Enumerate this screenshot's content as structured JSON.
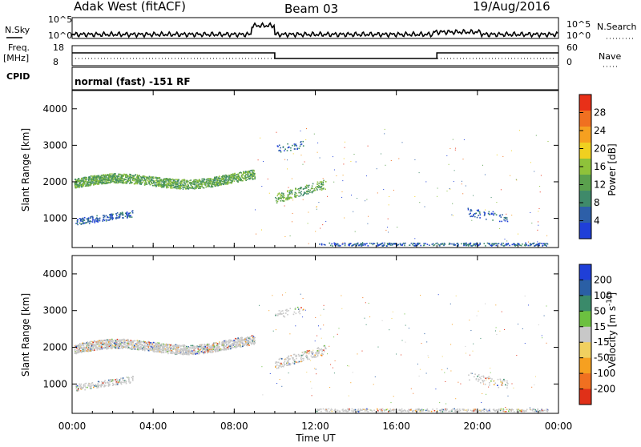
{
  "header": {
    "station": "Adak West (fitACF)",
    "beam": "Beam 03",
    "date": "19/Aug/2016"
  },
  "noise_panel": {
    "left_label": "N.Sky",
    "right_label": "N.Search",
    "y_tick_top": "10^5",
    "y_tick_bottom": "10^0",
    "right_tick_top": "10^5",
    "right_tick_bottom": "10^0"
  },
  "freq_panel": {
    "left_label_line1": "Freq.",
    "left_label_line2": "[MHz]",
    "right_label": "Nave",
    "y_tick_top": "18",
    "y_tick_bottom": "8",
    "right_tick_top": "60",
    "right_tick_bottom": "0"
  },
  "cpid_panel": {
    "label": "CPID",
    "text": "normal (fast) -151 RF"
  },
  "colors": {
    "power_scale": [
      "#1f3fd8",
      "#2d5fa8",
      "#3f8a6a",
      "#5aa04d",
      "#8fc23a",
      "#f0d020",
      "#f6a020",
      "#f07020",
      "#e83018"
    ],
    "velocity_scale": [
      "#1f3fd8",
      "#2a5fa5",
      "#3a8a6a",
      "#6cc040",
      "#c8c8c8",
      "#f0d060",
      "#f6a020",
      "#f07020",
      "#e03018"
    ]
  },
  "chart_data": [
    {
      "type": "heatmap",
      "title": "Power",
      "xlabel": "Time UT",
      "ylabel": "Slant Range [km]",
      "x_ticks": [
        "00:00",
        "04:00",
        "08:00",
        "12:00",
        "16:00",
        "20:00",
        "00:00"
      ],
      "y_ticks": [
        "1000",
        "2000",
        "3000",
        "4000"
      ],
      "ylim": [
        200,
        4500
      ],
      "colorbar_label": "Power [dB]",
      "colorbar_ticks": [
        "4",
        "8",
        "12",
        "16",
        "20",
        "24",
        "28"
      ],
      "colorbar_range": [
        0,
        30
      ]
    },
    {
      "type": "heatmap",
      "title": "Velocity",
      "xlabel": "Time UT",
      "ylabel": "Slant Range [km]",
      "x_ticks": [
        "00:00",
        "04:00",
        "08:00",
        "12:00",
        "16:00",
        "20:00",
        "00:00"
      ],
      "y_ticks": [
        "1000",
        "2000",
        "3000",
        "4000"
      ],
      "ylim": [
        200,
        4500
      ],
      "colorbar_label": "Velocity [m s^-1]",
      "colorbar_ticks": [
        "200",
        "100",
        "50",
        "15",
        "-15",
        "-50",
        "-100",
        "-200"
      ],
      "colorbar_range": [
        -250,
        250
      ]
    }
  ]
}
